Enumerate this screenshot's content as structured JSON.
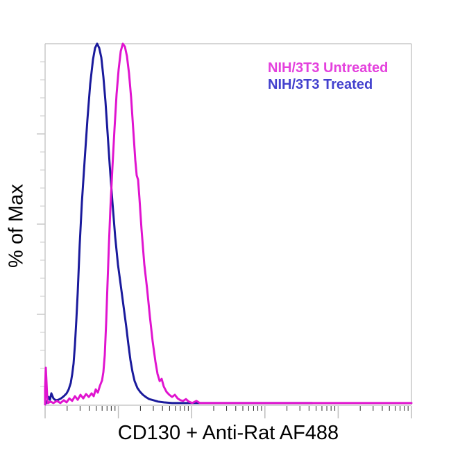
{
  "figure": {
    "xlabel": "CD130 + Anti-Rat AF488",
    "ylabel": "% of Max"
  },
  "legend": {
    "items": [
      {
        "label": "NIH/3T3 Untreated",
        "color": "#e441dd",
        "series": "untreated"
      },
      {
        "label": "NIH/3T3 Treated",
        "color": "#4341ce",
        "series": "treated"
      }
    ]
  },
  "colors": {
    "axis_gray": "#c9c9c9",
    "major_tick_gray": "#bdbdbd",
    "minor_tick_dark": "#2a2a2a",
    "untreated_curve": "#e014cf",
    "treated_curve": "#1a1a9c"
  },
  "chart_data": {
    "type": "line",
    "title": "",
    "xlabel": "CD130 + Anti-Rat AF488",
    "ylabel": "% of Max",
    "x_axis": {
      "scale": "log",
      "decades": 5,
      "tick_labels_visible": false
    },
    "y_axis": {
      "min": 0,
      "max": 100,
      "minor_step": 5,
      "major_step": 25,
      "tick_labels_visible": false
    },
    "grid": false,
    "legend_position": "top-right",
    "series": [
      {
        "name": "NIH/3T3 Treated",
        "color": "#1a1a9c",
        "points": [
          [
            0,
            0
          ],
          [
            0.028,
            1.0
          ],
          [
            0.047,
            2.1
          ],
          [
            0.066,
            1.3
          ],
          [
            0.085,
            3.1
          ],
          [
            0.114,
            1.7
          ],
          [
            0.142,
            1.2
          ],
          [
            0.18,
            1.3
          ],
          [
            0.218,
            1.7
          ],
          [
            0.256,
            2.3
          ],
          [
            0.294,
            3.1
          ],
          [
            0.322,
            4.2
          ],
          [
            0.35,
            6.0
          ],
          [
            0.369,
            8.3
          ],
          [
            0.388,
            11.3
          ],
          [
            0.407,
            16.5
          ],
          [
            0.426,
            23.3
          ],
          [
            0.445,
            31.0
          ],
          [
            0.473,
            44.4
          ],
          [
            0.502,
            56.0
          ],
          [
            0.54,
            67.7
          ],
          [
            0.578,
            79.0
          ],
          [
            0.616,
            88.8
          ],
          [
            0.653,
            95.6
          ],
          [
            0.682,
            98.8
          ],
          [
            0.71,
            100
          ],
          [
            0.739,
            98.8
          ],
          [
            0.767,
            96.2
          ],
          [
            0.795,
            90.8
          ],
          [
            0.824,
            84.0
          ],
          [
            0.852,
            75.4
          ],
          [
            0.881,
            66.7
          ],
          [
            0.919,
            56.2
          ],
          [
            0.956,
            46.5
          ],
          [
            0.994,
            38.8
          ],
          [
            1.032,
            33.1
          ],
          [
            1.07,
            27.3
          ],
          [
            1.108,
            21.5
          ],
          [
            1.136,
            16.7
          ],
          [
            1.165,
            12.3
          ],
          [
            1.193,
            9.0
          ],
          [
            1.222,
            6.5
          ],
          [
            1.259,
            4.6
          ],
          [
            1.297,
            3.5
          ],
          [
            1.335,
            2.7
          ],
          [
            1.373,
            2.1
          ],
          [
            1.42,
            1.5
          ],
          [
            1.477,
            1.2
          ],
          [
            1.544,
            0.8
          ],
          [
            1.619,
            0.6
          ],
          [
            1.733,
            0.4
          ],
          [
            1.941,
            0.4
          ],
          [
            2.32,
            0.4
          ],
          [
            2.794,
            0.4
          ],
          [
            3.362,
            0.4
          ],
          [
            3.646,
            0.4
          ]
        ]
      },
      {
        "name": "NIH/3T3 Untreated",
        "color": "#e014cf",
        "points": [
          [
            0,
            0
          ],
          [
            0,
            4.4
          ],
          [
            0.009,
            10.2
          ],
          [
            0.019,
            6.3
          ],
          [
            0.028,
            2.1
          ],
          [
            0.038,
            0.4
          ],
          [
            0.076,
            0.8
          ],
          [
            0.114,
            0.4
          ],
          [
            0.161,
            1.0
          ],
          [
            0.208,
            0.4
          ],
          [
            0.256,
            1.2
          ],
          [
            0.294,
            0.6
          ],
          [
            0.331,
            1.7
          ],
          [
            0.369,
            1.0
          ],
          [
            0.407,
            2.3
          ],
          [
            0.445,
            1.3
          ],
          [
            0.483,
            2.7
          ],
          [
            0.521,
            1.7
          ],
          [
            0.559,
            2.9
          ],
          [
            0.597,
            2.1
          ],
          [
            0.634,
            3.1
          ],
          [
            0.663,
            2.3
          ],
          [
            0.691,
            4.2
          ],
          [
            0.72,
            3.3
          ],
          [
            0.748,
            5.2
          ],
          [
            0.777,
            6.7
          ],
          [
            0.795,
            9.0
          ],
          [
            0.814,
            13.7
          ],
          [
            0.833,
            22.7
          ],
          [
            0.852,
            33.7
          ],
          [
            0.871,
            44.4
          ],
          [
            0.89,
            54.0
          ],
          [
            0.919,
            65.6
          ],
          [
            0.947,
            76.3
          ],
          [
            0.975,
            86.0
          ],
          [
            1.004,
            92.9
          ],
          [
            1.032,
            97.9
          ],
          [
            1.061,
            100
          ],
          [
            1.089,
            99.2
          ],
          [
            1.117,
            96.5
          ],
          [
            1.146,
            91.7
          ],
          [
            1.174,
            85.0
          ],
          [
            1.203,
            76.3
          ],
          [
            1.231,
            67.7
          ],
          [
            1.25,
            63.5
          ],
          [
            1.269,
            62.3
          ],
          [
            1.288,
            57.1
          ],
          [
            1.316,
            48.5
          ],
          [
            1.354,
            38.8
          ],
          [
            1.392,
            32.1
          ],
          [
            1.43,
            24.4
          ],
          [
            1.468,
            17.5
          ],
          [
            1.506,
            11.9
          ],
          [
            1.534,
            8.5
          ],
          [
            1.563,
            6.5
          ],
          [
            1.591,
            7.1
          ],
          [
            1.619,
            5.0
          ],
          [
            1.657,
            3.5
          ],
          [
            1.695,
            2.7
          ],
          [
            1.733,
            2.1
          ],
          [
            1.771,
            2.7
          ],
          [
            1.809,
            1.7
          ],
          [
            1.847,
            1.2
          ],
          [
            1.884,
            1.0
          ],
          [
            1.922,
            1.5
          ],
          [
            1.96,
            0.8
          ],
          [
            2.008,
            0.4
          ],
          [
            2.064,
            1.0
          ],
          [
            2.112,
            0.4
          ],
          [
            2.225,
            0.4
          ],
          [
            5,
            0.4
          ]
        ]
      }
    ]
  }
}
